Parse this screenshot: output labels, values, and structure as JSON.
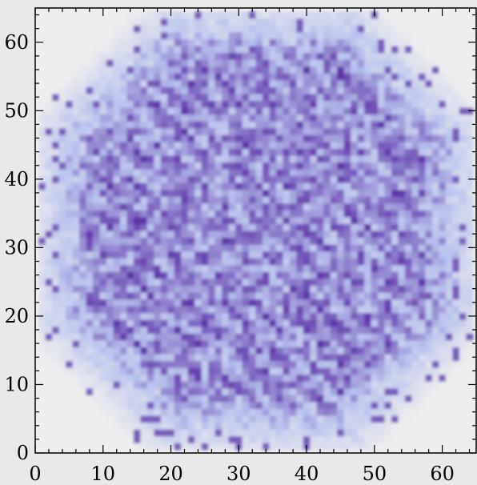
{
  "chart_data": {
    "type": "heatmap",
    "title": "",
    "xlabel": "",
    "ylabel": "",
    "xlim": [
      0,
      65
    ],
    "ylim": [
      0,
      65
    ],
    "grid": false,
    "legend": "none",
    "x_ticks": [
      0,
      10,
      20,
      30,
      40,
      50,
      60
    ],
    "y_ticks": [
      0,
      10,
      20,
      30,
      40,
      50,
      60
    ],
    "x_tick_labels": [
      "0",
      "10",
      "20",
      "30",
      "40",
      "50",
      "60"
    ],
    "y_tick_labels": [
      "0",
      "10",
      "20",
      "30",
      "40",
      "50",
      "60"
    ],
    "grid_size": [
      64,
      64
    ],
    "colormap": {
      "low": "#eeeeee",
      "mid": "#b9c3ee",
      "high": "#5b2fa6"
    },
    "field": "Roughly octagonal high-intensity region with noisy diagonal texture spanning x≈2–64, y≈1–64; corners near low intensity."
  }
}
